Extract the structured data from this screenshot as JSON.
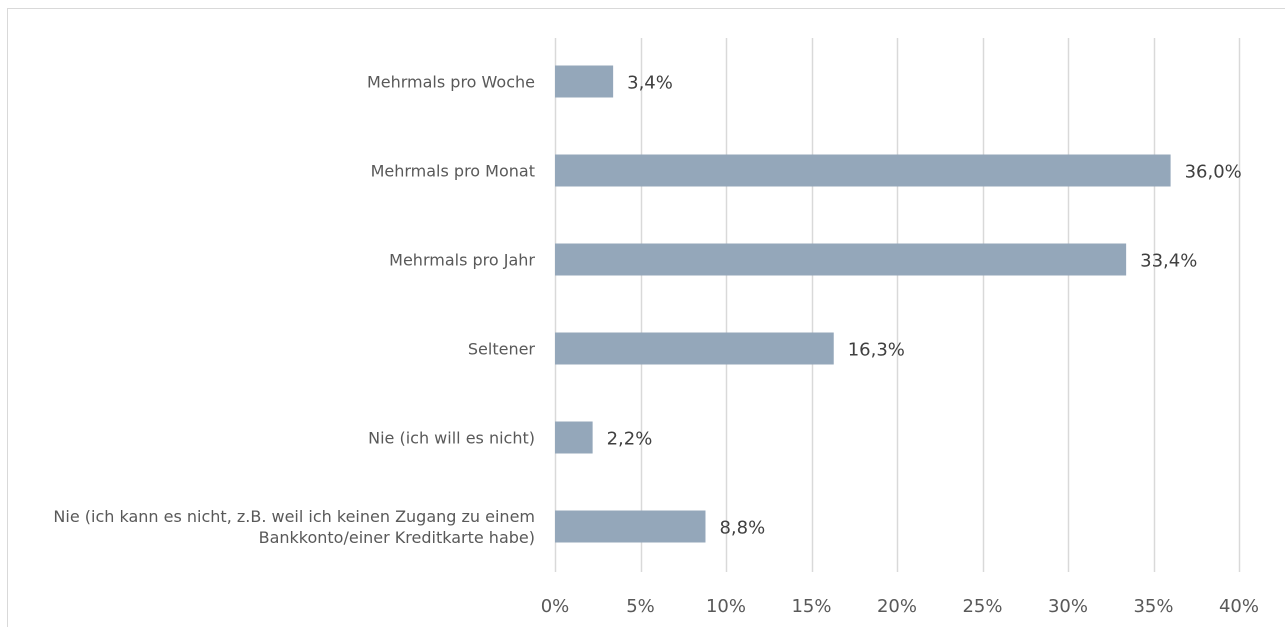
{
  "chart_data": {
    "type": "bar",
    "orientation": "horizontal",
    "categories": [
      [
        "Mehrmals pro Woche"
      ],
      [
        "Mehrmals pro Monat"
      ],
      [
        "Mehrmals pro Jahr"
      ],
      [
        "Seltener"
      ],
      [
        "Nie (ich will es nicht)"
      ],
      [
        "Nie (ich kann es nicht, z.B. weil ich keinen Zugang zu einem",
        "Bankkonto/einer Kreditkarte habe)"
      ]
    ],
    "values": [
      3.4,
      36.0,
      33.4,
      16.3,
      2.2,
      8.8
    ],
    "value_labels": [
      "3,4%",
      "36,0%",
      "33,4%",
      "16,3%",
      "2,2%",
      "8,8%"
    ],
    "xlim": [
      0,
      40
    ],
    "x_ticks": [
      0,
      5,
      10,
      15,
      20,
      25,
      30,
      35,
      40
    ],
    "x_tick_labels": [
      "0%",
      "5%",
      "10%",
      "15%",
      "20%",
      "25%",
      "30%",
      "35%",
      "40%"
    ],
    "grid": "vertical",
    "bar_color": "#94a7ba",
    "grid_color": "#d9d9d9"
  }
}
